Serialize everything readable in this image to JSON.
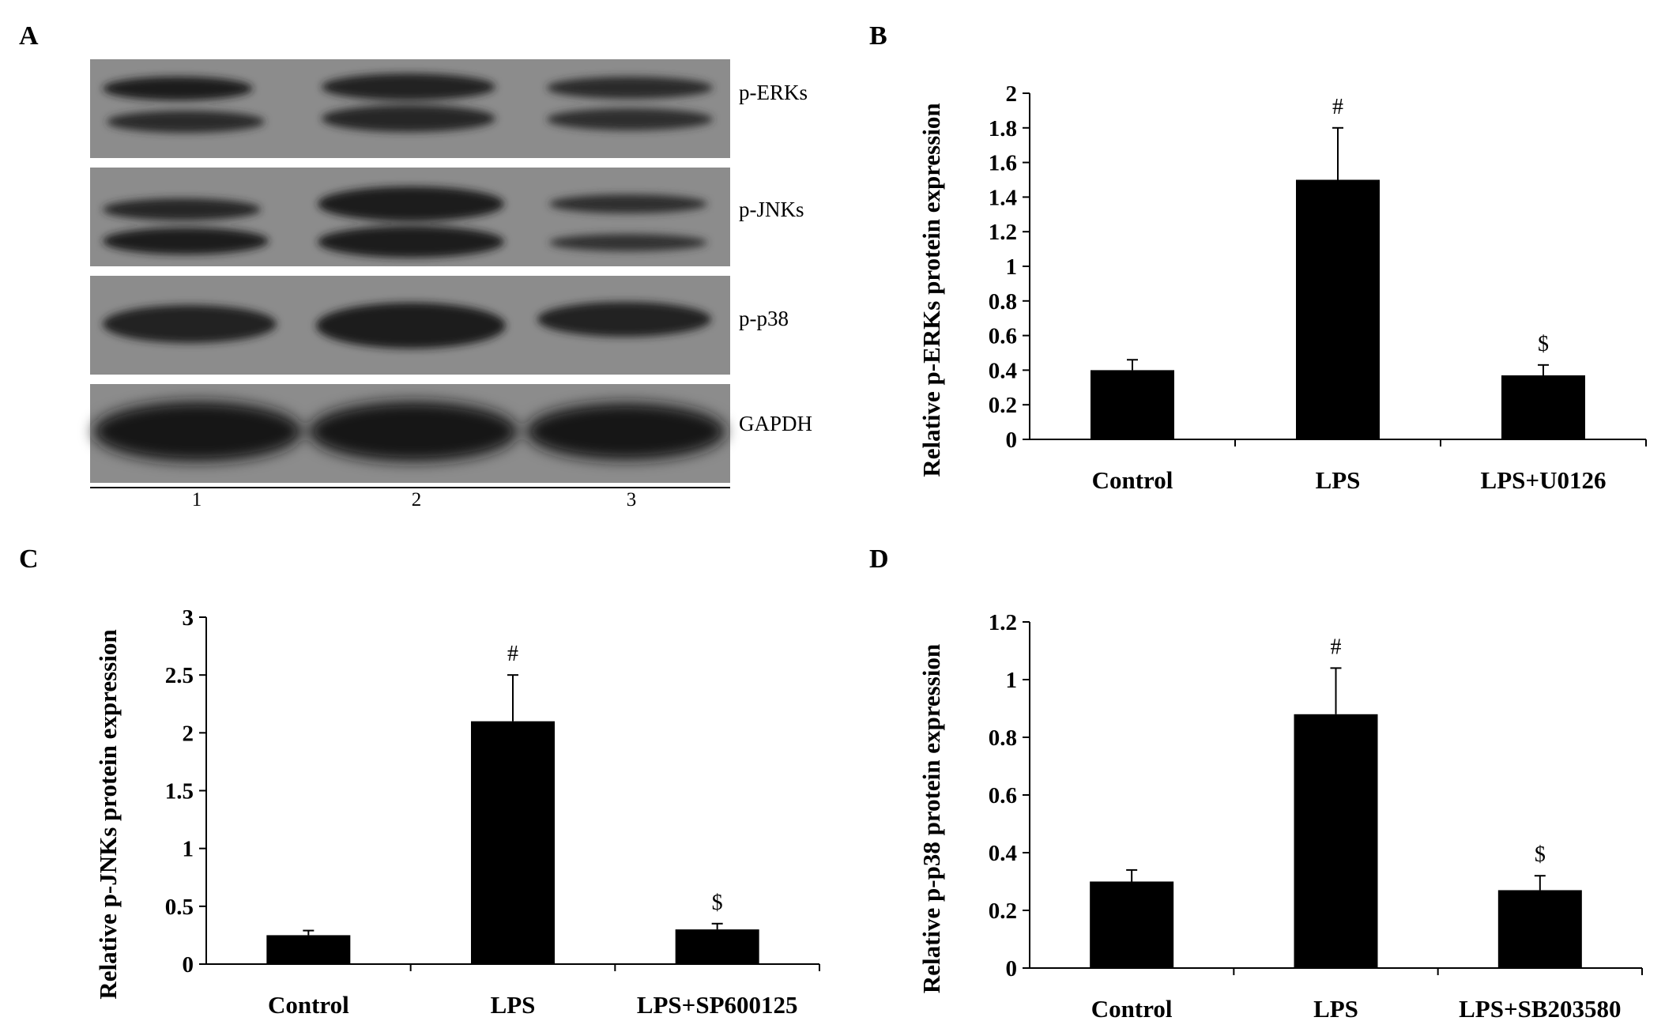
{
  "panels": {
    "A": {
      "letter": "A",
      "blot_labels": [
        "p-ERKs",
        "p-JNKs",
        "p-p38",
        "GAPDH"
      ],
      "lane_labels": [
        "1",
        "2",
        "3"
      ]
    },
    "B": {
      "letter": "B"
    },
    "C": {
      "letter": "C"
    },
    "D": {
      "letter": "D"
    }
  },
  "chart_data": [
    {
      "panel": "B",
      "type": "bar",
      "categories": [
        "Control",
        "LPS",
        "LPS+U0126"
      ],
      "values": [
        0.4,
        1.5,
        0.37
      ],
      "errors": [
        0.06,
        0.3,
        0.06
      ],
      "annotations": [
        "",
        "#",
        "$"
      ],
      "ylabel": "Relative p-ERKs protein expression",
      "ylim": [
        0,
        2
      ],
      "yticks": [
        0,
        0.2,
        0.4,
        0.6,
        0.8,
        1,
        1.2,
        1.4,
        1.6,
        1.8,
        2
      ],
      "ytick_labels": [
        "0",
        "0.2",
        "0.4",
        "0.6",
        "0.8",
        "1",
        "1.2",
        "1.4",
        "1.6",
        "1.8",
        "2"
      ],
      "grid": false
    },
    {
      "panel": "C",
      "type": "bar",
      "categories": [
        "Control",
        "LPS",
        "LPS+SP600125"
      ],
      "values": [
        0.25,
        2.1,
        0.3
      ],
      "errors": [
        0.04,
        0.4,
        0.05
      ],
      "annotations": [
        "",
        "#",
        "$"
      ],
      "ylabel": "Relative p-JNKs protein expression",
      "ylim": [
        0,
        3
      ],
      "yticks": [
        0,
        0.5,
        1,
        1.5,
        2,
        2.5,
        3
      ],
      "ytick_labels": [
        "0",
        "0.5",
        "1",
        "1.5",
        "2",
        "2.5",
        "3"
      ],
      "grid": false
    },
    {
      "panel": "D",
      "type": "bar",
      "categories": [
        "Control",
        "LPS",
        "LPS+SB203580"
      ],
      "values": [
        0.3,
        0.88,
        0.27
      ],
      "errors": [
        0.04,
        0.16,
        0.05
      ],
      "annotations": [
        "",
        "#",
        "$"
      ],
      "ylabel": "Relative p-p38 protein expression",
      "ylim": [
        0,
        1.2
      ],
      "yticks": [
        0,
        0.2,
        0.4,
        0.6,
        0.8,
        1,
        1.2
      ],
      "ytick_labels": [
        "0",
        "0.2",
        "0.4",
        "0.6",
        "0.8",
        "1",
        "1.2"
      ],
      "grid": false
    }
  ],
  "colors": {
    "bar": "#000000",
    "axis": "#000000",
    "blot_background": "#8c8c8c",
    "blot_band": "#1e1e1e"
  }
}
